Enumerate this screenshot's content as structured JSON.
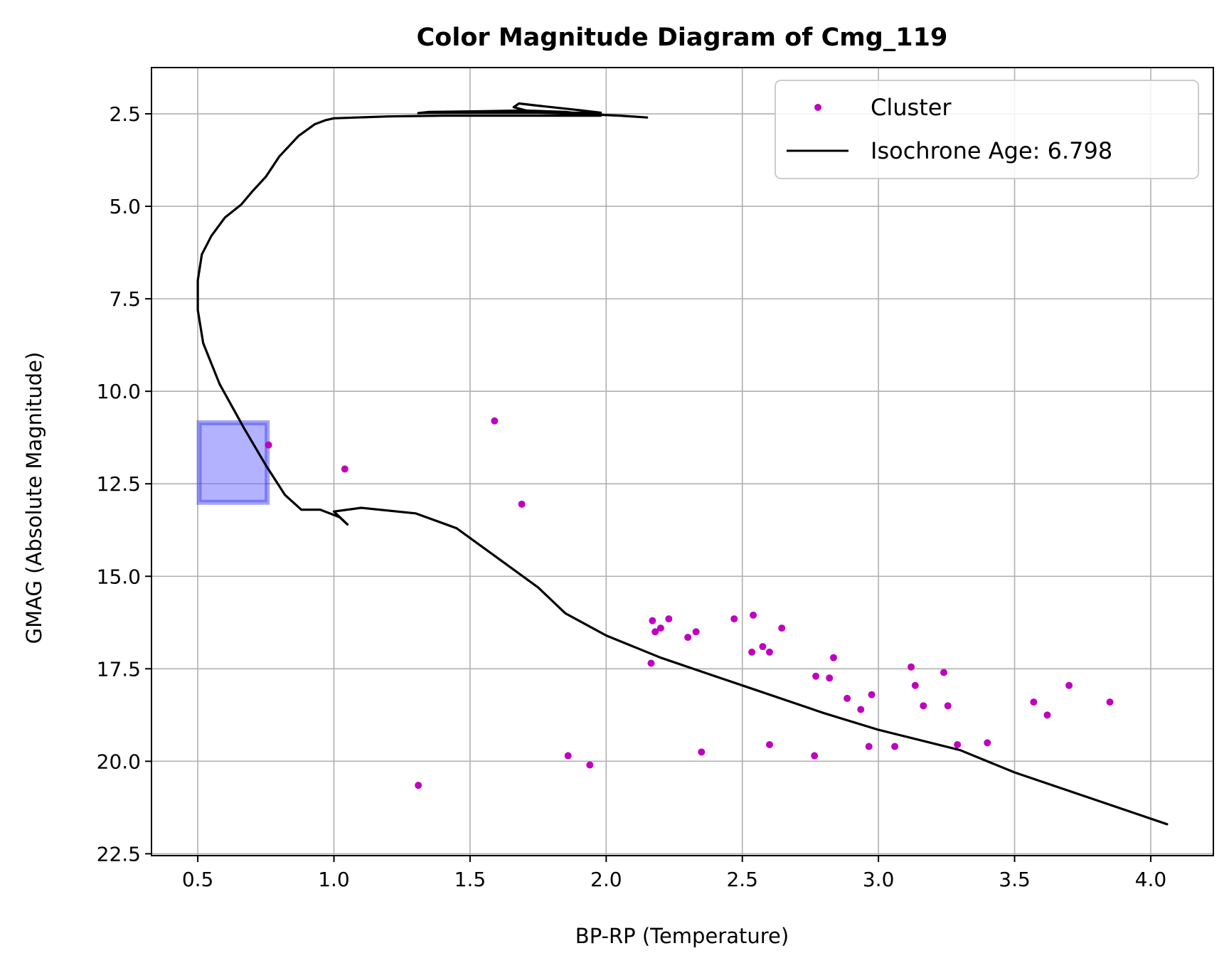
{
  "chart_data": {
    "type": "scatter",
    "title": "Color Magnitude Diagram of Cmg_119",
    "xlabel": "BP-RP (Temperature)",
    "ylabel": "GMAG (Absolute Magnitude)",
    "xlim": [
      0.33,
      4.23
    ],
    "ylim": [
      22.55,
      1.25
    ],
    "y_inverted": true,
    "grid": true,
    "legend_position": "top-right",
    "x_ticks": [
      0.5,
      1.0,
      1.5,
      2.0,
      2.5,
      3.0,
      3.5,
      4.0
    ],
    "x_tick_labels": [
      "0.5",
      "1.0",
      "1.5",
      "2.0",
      "2.5",
      "3.0",
      "3.5",
      "4.0"
    ],
    "y_ticks": [
      2.5,
      5.0,
      7.5,
      10.0,
      12.5,
      15.0,
      17.5,
      20.0,
      22.5
    ],
    "y_tick_labels": [
      "2.5",
      "5.0",
      "7.5",
      "10.0",
      "12.5",
      "15.0",
      "17.5",
      "20.0",
      "22.5"
    ],
    "series": [
      {
        "name": "Cluster",
        "kind": "scatter",
        "color": "#bf00bf",
        "points": [
          [
            1.59,
            10.8
          ],
          [
            0.76,
            11.45
          ],
          [
            1.04,
            12.1
          ],
          [
            1.69,
            13.05
          ],
          [
            2.17,
            16.2
          ],
          [
            2.18,
            16.5
          ],
          [
            2.2,
            16.4
          ],
          [
            2.23,
            16.15
          ],
          [
            2.3,
            16.65
          ],
          [
            2.33,
            16.5
          ],
          [
            2.165,
            17.35
          ],
          [
            2.47,
            16.15
          ],
          [
            2.54,
            16.05
          ],
          [
            2.535,
            17.05
          ],
          [
            2.575,
            16.9
          ],
          [
            2.6,
            17.05
          ],
          [
            2.645,
            16.4
          ],
          [
            2.77,
            17.7
          ],
          [
            2.82,
            17.75
          ],
          [
            2.835,
            17.2
          ],
          [
            2.885,
            18.3
          ],
          [
            2.935,
            18.6
          ],
          [
            2.975,
            18.2
          ],
          [
            3.12,
            17.45
          ],
          [
            3.135,
            17.95
          ],
          [
            3.165,
            18.5
          ],
          [
            3.24,
            17.6
          ],
          [
            3.255,
            18.5
          ],
          [
            3.57,
            18.4
          ],
          [
            3.62,
            18.75
          ],
          [
            3.7,
            17.95
          ],
          [
            3.85,
            18.4
          ],
          [
            2.6,
            19.55
          ],
          [
            2.765,
            19.85
          ],
          [
            2.965,
            19.6
          ],
          [
            3.06,
            19.6
          ],
          [
            3.29,
            19.55
          ],
          [
            3.4,
            19.5
          ],
          [
            2.35,
            19.75
          ],
          [
            1.86,
            19.85
          ],
          [
            1.94,
            20.1
          ],
          [
            1.31,
            20.65
          ]
        ]
      },
      {
        "name": "Isochrone Age: 6.798",
        "kind": "line",
        "color": "#000000",
        "points": [
          [
            2.15,
            2.6
          ],
          [
            2.05,
            2.55
          ],
          [
            1.9,
            2.5
          ],
          [
            1.75,
            2.47
          ],
          [
            1.7,
            2.4
          ],
          [
            1.66,
            2.32
          ],
          [
            1.68,
            2.22
          ],
          [
            1.75,
            2.28
          ],
          [
            1.9,
            2.4
          ],
          [
            1.98,
            2.47
          ],
          [
            1.75,
            2.47
          ],
          [
            1.55,
            2.47
          ],
          [
            1.35,
            2.47
          ],
          [
            1.31,
            2.48
          ],
          [
            1.35,
            2.45
          ],
          [
            1.55,
            2.43
          ],
          [
            1.7,
            2.41
          ],
          [
            1.85,
            2.45
          ],
          [
            1.98,
            2.55
          ],
          [
            1.7,
            2.55
          ],
          [
            1.4,
            2.55
          ],
          [
            1.2,
            2.57
          ],
          [
            1.0,
            2.62
          ],
          [
            0.97,
            2.67
          ],
          [
            0.93,
            2.78
          ],
          [
            0.87,
            3.1
          ],
          [
            0.8,
            3.65
          ],
          [
            0.75,
            4.2
          ],
          [
            0.7,
            4.6
          ],
          [
            0.66,
            4.95
          ],
          [
            0.6,
            5.3
          ],
          [
            0.55,
            5.8
          ],
          [
            0.515,
            6.3
          ],
          [
            0.5,
            7.0
          ],
          [
            0.5,
            7.8
          ],
          [
            0.52,
            8.7
          ],
          [
            0.58,
            9.8
          ],
          [
            0.67,
            11.0
          ],
          [
            0.75,
            12.0
          ],
          [
            0.82,
            12.8
          ],
          [
            0.88,
            13.2
          ],
          [
            0.95,
            13.2
          ],
          [
            1.02,
            13.4
          ],
          [
            1.05,
            13.6
          ],
          [
            1.0,
            13.25
          ],
          [
            1.1,
            13.15
          ],
          [
            1.3,
            13.3
          ],
          [
            1.45,
            13.7
          ],
          [
            1.6,
            14.5
          ],
          [
            1.75,
            15.3
          ],
          [
            1.85,
            16.0
          ],
          [
            2.0,
            16.6
          ],
          [
            2.2,
            17.2
          ],
          [
            2.5,
            17.95
          ],
          [
            2.8,
            18.7
          ],
          [
            3.0,
            19.15
          ],
          [
            3.3,
            19.7
          ],
          [
            3.5,
            20.3
          ],
          [
            3.8,
            21.05
          ],
          [
            4.06,
            21.7
          ]
        ]
      }
    ],
    "highlight_rect": {
      "x": [
        0.505,
        0.755
      ],
      "y": [
        10.85,
        13.0
      ],
      "color": "#6666ff"
    }
  }
}
